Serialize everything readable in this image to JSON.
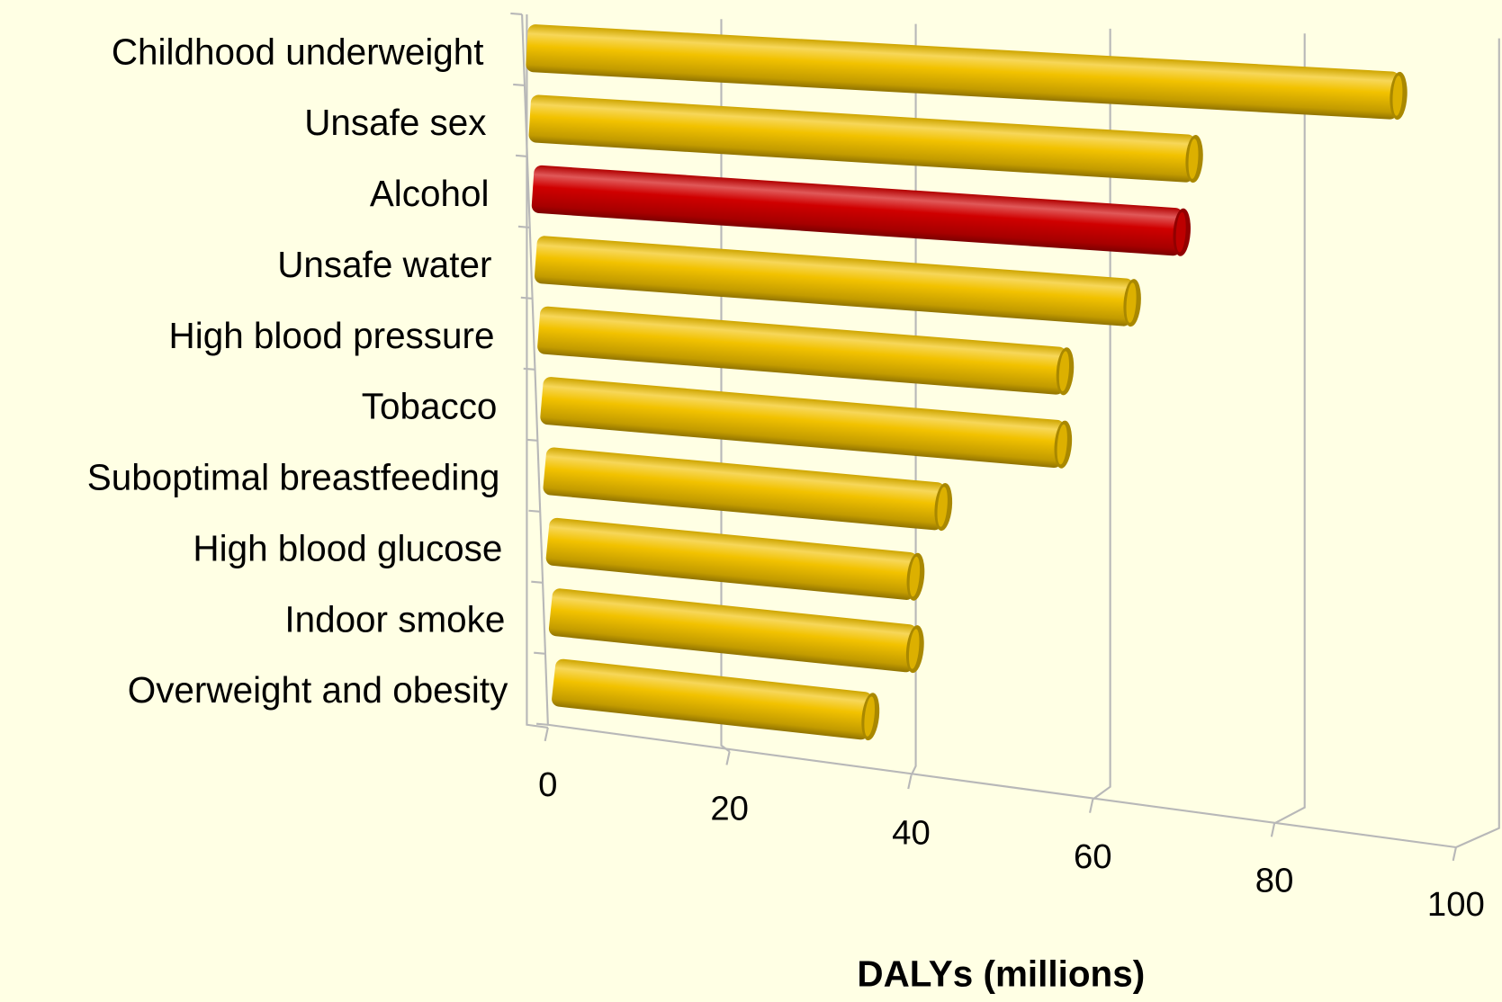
{
  "chart_data": {
    "type": "bar",
    "orientation": "horizontal",
    "x_label": "DALYs (millions)",
    "categories": [
      "Childhood underweight",
      "Unsafe sex",
      "Alcohol",
      "Unsafe water",
      "High blood pressure",
      "Tobacco",
      "Suboptimal breastfeeding",
      "High blood glucose",
      "Indoor smoke",
      "Overweight and obesity"
    ],
    "values": [
      91,
      70,
      69,
      64,
      57,
      57,
      44,
      41,
      41,
      36
    ],
    "colors": [
      "#f2c200",
      "#f2c200",
      "#d00000",
      "#f2c200",
      "#f2c200",
      "#f2c200",
      "#f2c200",
      "#f2c200",
      "#f2c200",
      "#f2c200"
    ],
    "xlim": [
      0,
      100
    ],
    "xticks": [
      0,
      20,
      40,
      60,
      80,
      100
    ],
    "grid": true
  }
}
